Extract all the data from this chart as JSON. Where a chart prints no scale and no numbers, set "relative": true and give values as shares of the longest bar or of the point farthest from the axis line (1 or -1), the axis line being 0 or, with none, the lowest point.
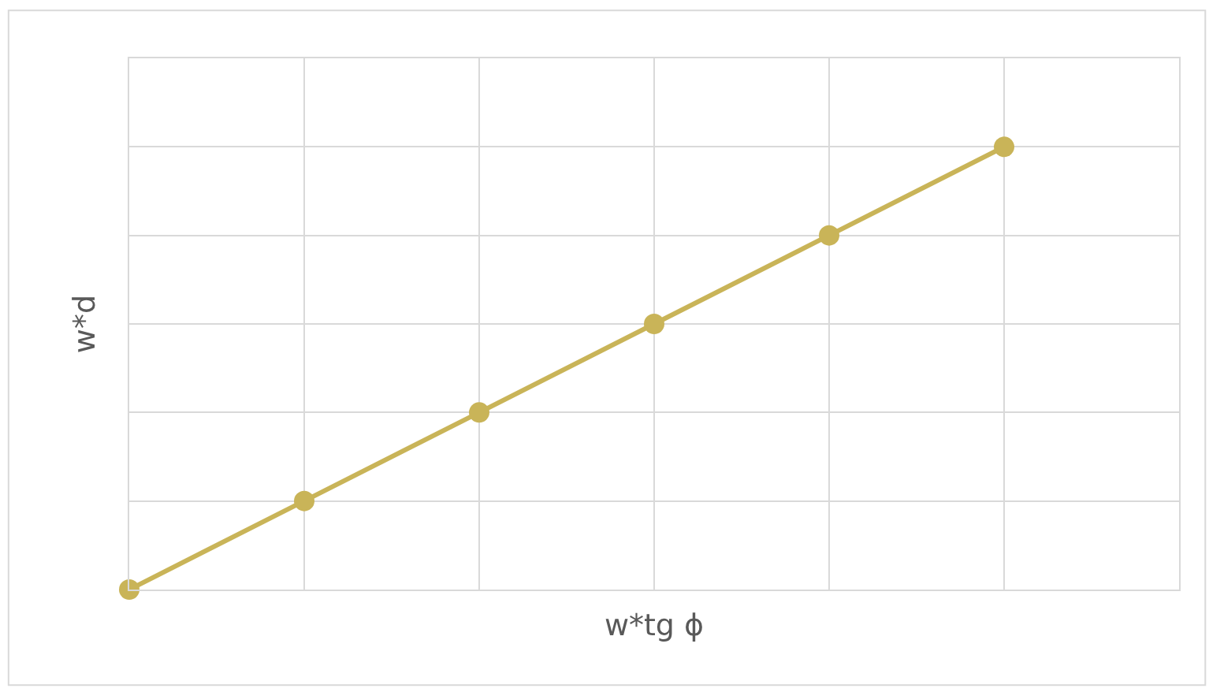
{
  "chart_data": {
    "type": "line",
    "xlabel": "w*tg ϕ",
    "ylabel": "w*d",
    "relative": true,
    "categories": [
      null,
      null,
      null,
      null,
      null,
      null
    ],
    "series": [
      {
        "color": "#c9b458",
        "values": [
          0,
          0.2,
          0.4,
          0.6,
          0.8,
          1
        ]
      }
    ],
    "grid": true,
    "marker": "circle",
    "line_style": "solid",
    "tick_labels": false
  }
}
